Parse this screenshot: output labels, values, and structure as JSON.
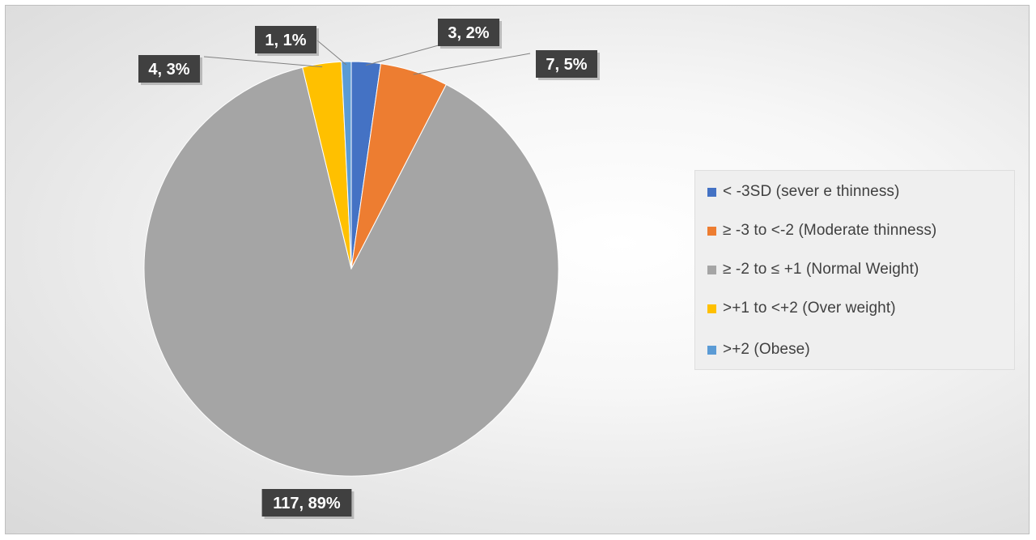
{
  "chart_data": {
    "type": "pie",
    "title": "",
    "slices": [
      {
        "name": "< -3SD        (sever e thinness)",
        "value": 3,
        "percent": "2%",
        "data_label": "3, 2%",
        "color": "#4472C4"
      },
      {
        "name": "≥ -3 to <-2    (Moderate thinness)",
        "value": 7,
        "percent": "5%",
        "data_label": "7, 5%",
        "color": "#ED7D31"
      },
      {
        "name": "≥ -2 to ≤ +1  (Normal Weight)",
        "value": 117,
        "percent": "89%",
        "data_label": "117, 89%",
        "color": "#A5A5A5"
      },
      {
        "name": ">+1 to <+2   (Over weight)",
        "value": 4,
        "percent": "3%",
        "data_label": "4, 3%",
        "color": "#FFC000"
      },
      {
        "name": ">+2              (Obese)",
        "value": 1,
        "percent": "1%",
        "data_label": "1, 1%",
        "color": "#5B9BD5"
      }
    ],
    "legend_position": "right",
    "start_angle": "12 o'clock",
    "direction": "clockwise"
  }
}
